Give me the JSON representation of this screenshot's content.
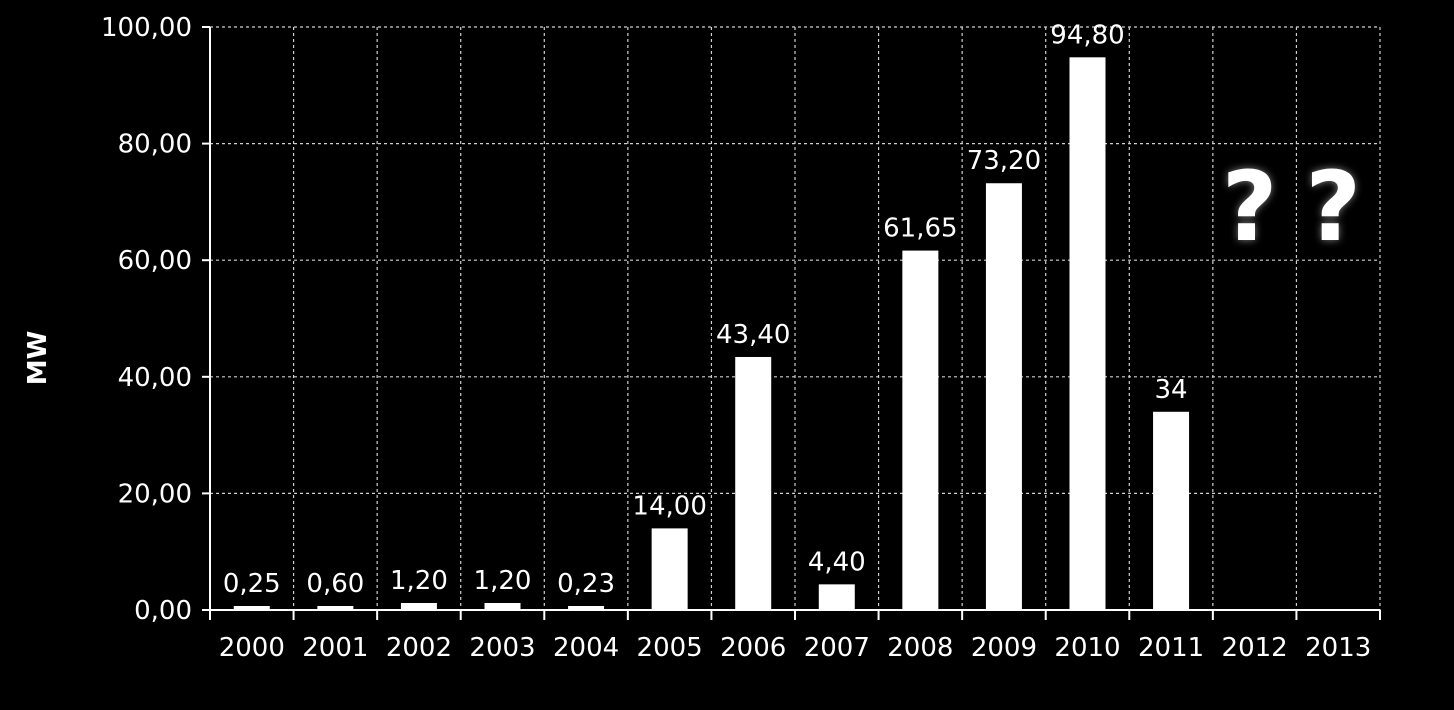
{
  "chart_data": {
    "type": "bar",
    "title": "",
    "xlabel": "",
    "ylabel": "MW",
    "ylim": [
      0,
      100
    ],
    "yticks": [
      0,
      20,
      40,
      60,
      80,
      100
    ],
    "ytick_labels": [
      "0,00",
      "20,00",
      "40,00",
      "60,00",
      "80,00",
      "100,00"
    ],
    "grid": true,
    "legend": "none",
    "bar_color": "#ffffff",
    "background_color": "#000000",
    "gridline_color": "#cfcfcf",
    "categories": [
      "2000",
      "2001",
      "2002",
      "2003",
      "2004",
      "2005",
      "2006",
      "2007",
      "2008",
      "2009",
      "2010",
      "2011",
      "2012",
      "2013"
    ],
    "values": [
      0.25,
      0.6,
      1.2,
      1.2,
      0.23,
      14.0,
      43.4,
      4.4,
      61.65,
      73.2,
      94.8,
      34,
      null,
      null
    ],
    "data_labels": [
      "0,25",
      "0,60",
      "1,20",
      "1,20",
      "0,23",
      "14,00",
      "43,40",
      "4,40",
      "61,65",
      "73,20",
      "94,80",
      "34",
      "",
      ""
    ],
    "annotations": [
      {
        "text": "?",
        "category": "2012"
      },
      {
        "text": "?",
        "category": "2013"
      }
    ]
  }
}
